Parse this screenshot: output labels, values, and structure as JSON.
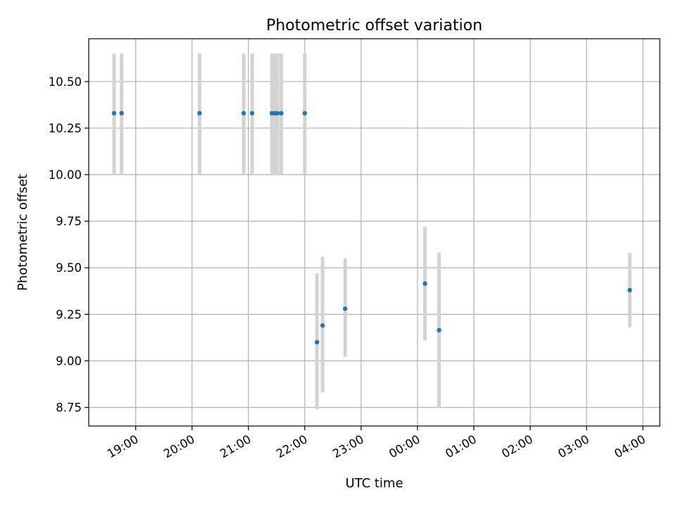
{
  "chart_data": {
    "type": "scatter",
    "title": "Photometric offset variation",
    "xlabel": "UTC time",
    "ylabel": "Photometric offset",
    "x_is_time": true,
    "xlim": [
      "18:10",
      "04:18"
    ],
    "ylim": [
      8.65,
      10.73
    ],
    "grid": true,
    "x_ticks": [
      "19:00",
      "20:00",
      "21:00",
      "22:00",
      "23:00",
      "00:00",
      "01:00",
      "02:00",
      "03:00",
      "04:00"
    ],
    "y_ticks": [
      "8.75",
      "9.00",
      "9.25",
      "9.50",
      "9.75",
      "10.00",
      "10.25",
      "10.50"
    ],
    "colors": {
      "point": "#1f77b4",
      "errorbar": "#d3d3d3",
      "grid": "#b0b0b0"
    },
    "points": [
      {
        "x": "18:37",
        "y": 10.33,
        "ylo": 10.0,
        "yhi": 10.65
      },
      {
        "x": "18:45",
        "y": 10.33,
        "ylo": 10.0,
        "yhi": 10.65
      },
      {
        "x": "20:08",
        "y": 10.33,
        "ylo": 10.0,
        "yhi": 10.65
      },
      {
        "x": "20:55",
        "y": 10.33,
        "ylo": 10.0,
        "yhi": 10.65
      },
      {
        "x": "21:04",
        "y": 10.33,
        "ylo": 10.0,
        "yhi": 10.65
      },
      {
        "x": "21:25",
        "y": 10.33,
        "ylo": 10.0,
        "yhi": 10.65
      },
      {
        "x": "21:28",
        "y": 10.33,
        "ylo": 10.0,
        "yhi": 10.65
      },
      {
        "x": "21:31",
        "y": 10.33,
        "ylo": 10.0,
        "yhi": 10.65
      },
      {
        "x": "21:35",
        "y": 10.33,
        "ylo": 10.0,
        "yhi": 10.65
      },
      {
        "x": "22:00",
        "y": 10.33,
        "ylo": 10.0,
        "yhi": 10.65
      },
      {
        "x": "22:13",
        "y": 9.1,
        "ylo": 8.74,
        "yhi": 9.47
      },
      {
        "x": "22:19",
        "y": 9.19,
        "ylo": 8.83,
        "yhi": 9.56
      },
      {
        "x": "22:43",
        "y": 9.28,
        "ylo": 9.02,
        "yhi": 9.55
      },
      {
        "x": "00:08",
        "y": 9.415,
        "ylo": 9.11,
        "yhi": 9.72
      },
      {
        "x": "00:23",
        "y": 9.165,
        "ylo": 8.75,
        "yhi": 9.58
      },
      {
        "x": "03:46",
        "y": 9.38,
        "ylo": 9.18,
        "yhi": 9.58
      }
    ]
  }
}
